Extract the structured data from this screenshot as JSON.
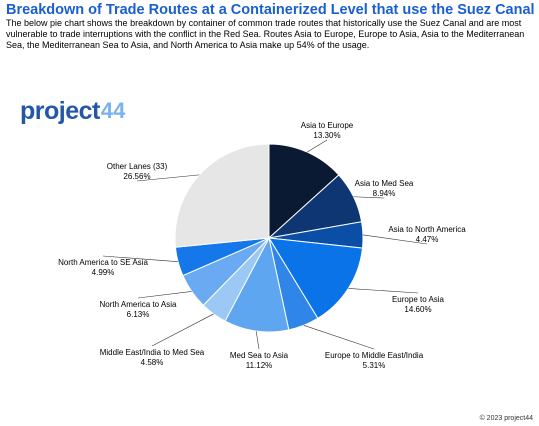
{
  "header": {
    "title": "Breakdown of Trade Routes at a Containerized Level that use the Suez Canal",
    "description": "The below pie chart shows the breakdown by container of common trade routes that historically use the Suez Canal and are most vulnerable to trade interruptions with the conflict in the Red Sea. Routes Asia to Europe, Europe to Asia, Asia to the Mediterranean Sea, the Mediterranean Sea to Asia, and North America to Asia make up 54% of the usage."
  },
  "logo": {
    "text": "project",
    "number": "44"
  },
  "colors": {
    "title": "#1a5fcf",
    "logo_text": "#2457a8",
    "logo_number": "#7ab2f0",
    "label": "#000000"
  },
  "footer": {
    "copyright": "© 2023 project44"
  },
  "chart_data": {
    "type": "pie",
    "start_angle_deg": 0,
    "direction": "clockwise",
    "slices": [
      {
        "label": "Asia to Europe",
        "value": 13.3,
        "value_label": "13.30%",
        "color": "#0a1a33"
      },
      {
        "label": "Asia to Med Sea",
        "value": 8.94,
        "value_label": "8.94%",
        "color": "#0d3673"
      },
      {
        "label": "Asia to North America",
        "value": 4.47,
        "value_label": "4.47%",
        "color": "#0a4ea6"
      },
      {
        "label": "Europe to Asia",
        "value": 14.6,
        "value_label": "14.60%",
        "color": "#0a73e8"
      },
      {
        "label": "Europe to Middle East/India",
        "value": 5.31,
        "value_label": "5.31%",
        "color": "#2f86e8"
      },
      {
        "label": "Med Sea to Asia",
        "value": 11.12,
        "value_label": "11.12%",
        "color": "#5ea6f0"
      },
      {
        "label": "Middle East/India to Med Sea",
        "value": 4.58,
        "value_label": "4.58%",
        "color": "#9cc8f5"
      },
      {
        "label": "North America to Asia",
        "value": 6.13,
        "value_label": "6.13%",
        "color": "#6aaaf2"
      },
      {
        "label": "North America to SE Asia",
        "value": 4.99,
        "value_label": "4.99%",
        "color": "#1477ea"
      },
      {
        "label": "Other Lanes (33)",
        "value": 26.56,
        "value_label": "26.56%",
        "color": "#e6e6e6"
      }
    ]
  }
}
